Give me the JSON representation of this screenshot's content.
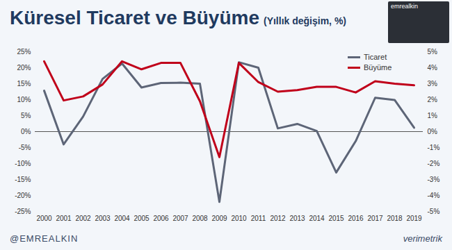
{
  "chart_data": {
    "type": "line",
    "title": "Küresel Ticaret ve Büyüme",
    "subtitle": "(Yıllık değişim, %)",
    "categories": [
      "2000",
      "2001",
      "2002",
      "2003",
      "2004",
      "2005",
      "2006",
      "2007",
      "2008",
      "2009",
      "2010",
      "2011",
      "2012",
      "2013",
      "2014",
      "2015",
      "2016",
      "2017",
      "2018",
      "2019"
    ],
    "series": [
      {
        "name": "Ticaret",
        "color": "#5d6577",
        "values": [
          12.8,
          -4,
          4.7,
          16.5,
          21.3,
          13.8,
          15.2,
          15.3,
          15,
          -22,
          21.7,
          20,
          1,
          2.4,
          0.2,
          -12.8,
          -3,
          10.6,
          9.9,
          1.2
        ]
      },
      {
        "name": "Büyüme",
        "color": "#c0001a",
        "axis": "y2",
        "values": [
          4.4,
          1.95,
          2.2,
          2.95,
          4.4,
          3.9,
          4.3,
          4.3,
          1.9,
          -1.6,
          4.3,
          3.1,
          2.5,
          2.6,
          2.8,
          2.8,
          2.45,
          3.15,
          3.0,
          2.9
        ]
      }
    ],
    "ylim": [
      -25,
      25
    ],
    "yticks": [
      {
        "value": -25,
        "label": "-25%"
      },
      {
        "value": -20,
        "label": "-20%"
      },
      {
        "value": -15,
        "label": "-15%"
      },
      {
        "value": -10,
        "label": "-10%"
      },
      {
        "value": -5,
        "label": "-5%"
      },
      {
        "value": 0,
        "label": "0%"
      },
      {
        "value": 5,
        "label": "5%"
      },
      {
        "value": 10,
        "label": "10%"
      },
      {
        "value": 15,
        "label": "15%"
      },
      {
        "value": 20,
        "label": "20%"
      },
      {
        "value": 25,
        "label": "25%"
      }
    ],
    "y2lim": [
      -5,
      5
    ],
    "y2ticks": [
      {
        "value": -5,
        "label": "-5%"
      },
      {
        "value": -4,
        "label": "-4%"
      },
      {
        "value": -3,
        "label": "-3%"
      },
      {
        "value": -2,
        "label": "-2%"
      },
      {
        "value": -1,
        "label": "-1%"
      },
      {
        "value": 0,
        "label": "0%"
      },
      {
        "value": 1,
        "label": "1%"
      },
      {
        "value": 2,
        "label": "2%"
      },
      {
        "value": 3,
        "label": "3%"
      },
      {
        "value": 4,
        "label": "4%"
      },
      {
        "value": 5,
        "label": "5%"
      }
    ],
    "legend": "top-right",
    "annotations": [
      "@EMREALKIN",
      "verimetrik",
      "emrealkin"
    ]
  }
}
